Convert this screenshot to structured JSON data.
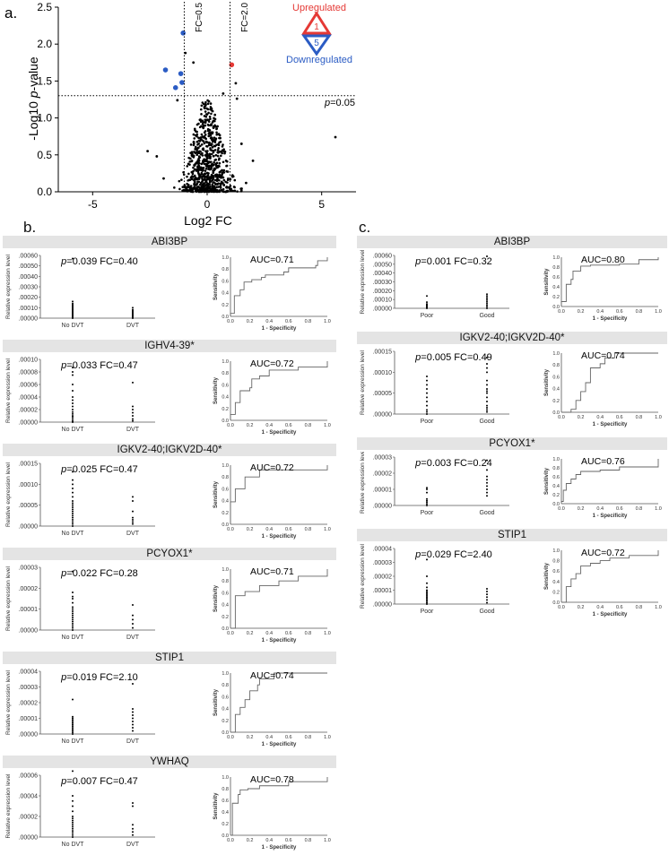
{
  "panel_labels": {
    "a": "a.",
    "b": "b.",
    "c": "c."
  },
  "volcano": {
    "type": "scatter",
    "xlabel": "Log2 FC",
    "ylabel_prefix": "-Log10 ",
    "ylabel_italic": "p",
    "ylabel_suffix": "-value",
    "xlim": [
      -6.5,
      6.5
    ],
    "ylim": [
      0,
      2.5
    ],
    "x_ticks": [
      -5,
      0,
      5
    ],
    "y_ticks": [
      "0.0",
      "0.5",
      "1.0",
      "1.5",
      "2.0",
      "2.5"
    ],
    "thresholds": {
      "fc_low_x": -1.0,
      "fc_low_label": "FC=0.5",
      "fc_high_x": 1.0,
      "fc_high_label": "FC=2.0",
      "p_y": 1.301,
      "p_label_italic": "p",
      "p_label_rest": "=0.05"
    },
    "legend": {
      "up_label": "Upregulated",
      "up_count": "1",
      "up_color": "#e53935",
      "down_label": "Downregulated",
      "down_count": "5",
      "down_color": "#2b5cc4"
    },
    "highlighted": [
      {
        "x": -1.05,
        "y": 2.15,
        "color": "#2b5cc4"
      },
      {
        "x": -1.82,
        "y": 1.65,
        "color": "#2b5cc4"
      },
      {
        "x": -1.15,
        "y": 1.6,
        "color": "#2b5cc4"
      },
      {
        "x": -1.1,
        "y": 1.48,
        "color": "#2b5cc4"
      },
      {
        "x": -1.38,
        "y": 1.41,
        "color": "#2b5cc4"
      },
      {
        "x": 1.07,
        "y": 1.72,
        "color": "#e53935"
      }
    ],
    "outliers": [
      {
        "x": 5.6,
        "y": 0.74
      },
      {
        "x": -2.6,
        "y": 0.55
      },
      {
        "x": -2.2,
        "y": 0.48
      },
      {
        "x": -1.9,
        "y": 0.18
      },
      {
        "x": 2.0,
        "y": 0.42
      },
      {
        "x": 1.7,
        "y": 0.12
      },
      {
        "x": 1.5,
        "y": 0.65
      },
      {
        "x": -1.3,
        "y": 1.24
      },
      {
        "x": 1.3,
        "y": 1.26
      },
      {
        "x": -0.95,
        "y": 1.88
      },
      {
        "x": -0.6,
        "y": 1.75
      },
      {
        "x": 1.25,
        "y": 1.47
      },
      {
        "x": 0.7,
        "y": 1.33
      }
    ]
  },
  "roc_axis": {
    "ylabel": "Sensitivity",
    "xlabel": "1 - Specificity",
    "y_ticks": [
      "0.0",
      "0.2",
      "0.4",
      "0.6",
      "0.8",
      "1.0"
    ],
    "x_ticks": [
      "0.0",
      "0.2",
      "0.4",
      "0.6",
      "0.8",
      "1.0"
    ]
  },
  "scatter_ylabel": "Relative expression level",
  "panels_b": [
    {
      "gene": "ABI3BP",
      "stats": "=0.039 FC=0.40",
      "auc": "AUC=0.71",
      "y_ticks": [
        ".00000",
        ".00010",
        ".00020",
        ".00030",
        ".00040",
        ".00050",
        ".00060"
      ],
      "groups": [
        "No DVT",
        "DVT"
      ],
      "points": [
        [
          0.0,
          1e-05,
          2e-05,
          3e-05,
          4e-05,
          5e-05,
          6e-05,
          7e-05,
          8e-05,
          9e-05,
          0.0001,
          0.00011,
          0.00012,
          0.00013,
          0.00014,
          0.00016,
          0.00057
        ],
        [
          0.0,
          1e-05,
          2e-05,
          3e-05,
          4e-05,
          5e-05,
          6e-05,
          7e-05,
          8e-05,
          0.0001
        ]
      ],
      "roc": [
        [
          0,
          0
        ],
        [
          0,
          0.05
        ],
        [
          0.04,
          0.2
        ],
        [
          0.04,
          0.35
        ],
        [
          0.1,
          0.45
        ],
        [
          0.14,
          0.58
        ],
        [
          0.22,
          0.62
        ],
        [
          0.32,
          0.66
        ],
        [
          0.36,
          0.7
        ],
        [
          0.55,
          0.75
        ],
        [
          0.6,
          0.82
        ],
        [
          0.88,
          0.86
        ],
        [
          0.9,
          0.94
        ],
        [
          1,
          1
        ]
      ]
    },
    {
      "gene": "IGHV4-39*",
      "stats": "=0.033 FC=0.47",
      "auc": "AUC=0.72",
      "y_ticks": [
        ".00000",
        ".00002",
        ".00004",
        ".00006",
        ".00008",
        ".00010"
      ],
      "groups": [
        "No DVT",
        "DVT"
      ],
      "points": [
        [
          0.0,
          2e-06,
          5e-06,
          8e-06,
          1e-05,
          1.3e-05,
          1.6e-05,
          2e-05,
          2.5e-05,
          3e-05,
          3.5e-05,
          4e-05,
          5e-05,
          6e-05,
          7.5e-05,
          8e-05,
          8.7e-05
        ],
        [
          2e-06,
          5e-06,
          1e-05,
          1.5e-05,
          2e-05,
          2.5e-05,
          6.3e-05
        ]
      ],
      "roc": [
        [
          0,
          0
        ],
        [
          0,
          0.1
        ],
        [
          0.05,
          0.2
        ],
        [
          0.05,
          0.3
        ],
        [
          0.1,
          0.35
        ],
        [
          0.1,
          0.5
        ],
        [
          0.2,
          0.55
        ],
        [
          0.22,
          0.7
        ],
        [
          0.3,
          0.75
        ],
        [
          0.4,
          0.75
        ],
        [
          0.4,
          0.85
        ],
        [
          0.7,
          0.9
        ],
        [
          1,
          1
        ]
      ]
    },
    {
      "gene": "IGKV2-40;IGKV2D-40*",
      "stats": "=0.025 FC=0.47",
      "auc": "AUC=0.72",
      "y_ticks": [
        ".00000",
        ".00005",
        ".00010",
        ".00015"
      ],
      "groups": [
        "No DVT",
        "DVT"
      ],
      "points": [
        [
          0.0,
          5e-06,
          1e-05,
          1.5e-05,
          2e-05,
          2.5e-05,
          3e-05,
          3.5e-05,
          4e-05,
          4.5e-05,
          5e-05,
          5.5e-05,
          6e-05,
          7e-05,
          8e-05,
          9e-05,
          0.0001,
          0.00011,
          0.00013
        ],
        [
          5e-06,
          1e-05,
          1.5e-05,
          2e-05,
          3.5e-05,
          6e-05,
          7e-05
        ]
      ],
      "roc": [
        [
          0,
          0
        ],
        [
          0,
          0.38
        ],
        [
          0.05,
          0.38
        ],
        [
          0.05,
          0.6
        ],
        [
          0.1,
          0.6
        ],
        [
          0.15,
          0.8
        ],
        [
          0.3,
          0.82
        ],
        [
          0.3,
          0.92
        ],
        [
          0.5,
          0.92
        ],
        [
          1,
          1
        ]
      ]
    },
    {
      "gene": "PCYOX1*",
      "stats": "=0.022 FC=0.28",
      "auc": "AUC=0.71",
      "y_ticks": [
        ".00000",
        ".00001",
        ".00002",
        ".00003"
      ],
      "groups": [
        "No DVT",
        "DVT"
      ],
      "points": [
        [
          0.0,
          1e-06,
          2e-06,
          3e-06,
          4e-06,
          5e-06,
          6e-06,
          7e-06,
          8e-06,
          9e-06,
          1e-05,
          1.1e-05,
          1.3e-05,
          1.5e-05,
          1.6e-05,
          1.8e-05,
          2.8e-05
        ],
        [
          1e-06,
          3e-06,
          5e-06,
          7e-06,
          1.2e-05
        ]
      ],
      "roc": [
        [
          0,
          0
        ],
        [
          0.05,
          0.35
        ],
        [
          0.05,
          0.55
        ],
        [
          0.15,
          0.62
        ],
        [
          0.3,
          0.72
        ],
        [
          0.5,
          0.8
        ],
        [
          0.7,
          0.88
        ],
        [
          1,
          1
        ]
      ]
    },
    {
      "gene": "STIP1",
      "stats": "=0.019 FC=2.10",
      "auc": "AUC=0.74",
      "y_ticks": [
        ".00000",
        ".00001",
        ".00002",
        ".00003",
        ".00004"
      ],
      "groups": [
        "No DVT",
        "DVT"
      ],
      "points": [
        [
          0.0,
          1e-06,
          2e-06,
          3e-06,
          4e-06,
          5e-06,
          6e-06,
          7e-06,
          8e-06,
          9e-06,
          1e-05,
          1.1e-05,
          2.2e-05
        ],
        [
          2e-06,
          4e-06,
          6e-06,
          8e-06,
          1e-05,
          1.2e-05,
          1.4e-05,
          1.6e-05,
          3.2e-05
        ]
      ],
      "roc": [
        [
          0,
          0
        ],
        [
          0.05,
          0.1
        ],
        [
          0.05,
          0.3
        ],
        [
          0.1,
          0.42
        ],
        [
          0.15,
          0.55
        ],
        [
          0.2,
          0.7
        ],
        [
          0.28,
          0.8
        ],
        [
          0.3,
          0.9
        ],
        [
          0.45,
          1
        ],
        [
          1,
          1
        ]
      ]
    },
    {
      "gene": "YWHAQ",
      "stats": "=0.007 FC=0.47",
      "auc": "AUC=0.78",
      "y_ticks": [
        ".00000",
        ".00002",
        ".00004",
        ".00006"
      ],
      "groups": [
        "No DVT",
        "DVT"
      ],
      "points": [
        [
          0.0,
          2e-06,
          4e-06,
          6e-06,
          8e-06,
          1e-05,
          1.2e-05,
          1.4e-05,
          1.6e-05,
          1.8e-05,
          2e-05,
          2.5e-05,
          3e-05,
          3.5e-05,
          4e-05,
          6.4e-05
        ],
        [
          2e-06,
          5e-06,
          8e-06,
          1.2e-05,
          3e-05,
          3.3e-05
        ]
      ],
      "roc": [
        [
          0,
          0
        ],
        [
          0.02,
          0.3
        ],
        [
          0.02,
          0.55
        ],
        [
          0.08,
          0.7
        ],
        [
          0.1,
          0.78
        ],
        [
          0.18,
          0.8
        ],
        [
          0.3,
          0.85
        ],
        [
          0.6,
          0.92
        ],
        [
          1,
          1
        ]
      ]
    }
  ],
  "panels_c": [
    {
      "gene": "ABI3BP",
      "stats": "=0.001 FC=0.32",
      "auc": "AUC=0.80",
      "y_ticks": [
        ".00000",
        ".00010",
        ".00020",
        ".00030",
        ".00040",
        ".00050",
        ".00060"
      ],
      "groups": [
        "Poor",
        "Good"
      ],
      "points": [
        [
          0.0,
          1e-05,
          2e-05,
          3e-05,
          4e-05,
          5e-05,
          7e-05,
          0.00014
        ],
        [
          0.0,
          2e-05,
          4e-05,
          6e-05,
          8e-05,
          0.0001,
          0.00012,
          0.00014,
          0.00016,
          0.00059
        ]
      ],
      "roc": [
        [
          0,
          0
        ],
        [
          0,
          0.1
        ],
        [
          0.05,
          0.28
        ],
        [
          0.05,
          0.45
        ],
        [
          0.1,
          0.55
        ],
        [
          0.12,
          0.72
        ],
        [
          0.2,
          0.82
        ],
        [
          0.3,
          0.84
        ],
        [
          0.6,
          0.86
        ],
        [
          0.8,
          0.95
        ],
        [
          1,
          1
        ]
      ]
    },
    {
      "gene": "IGKV2-40;IGKV2D-40*",
      "stats": "=0.005 FC=0.49",
      "auc": "AUC=0.74",
      "y_ticks": [
        ".00000",
        ".00005",
        ".00010",
        ".00015"
      ],
      "groups": [
        "Poor",
        "Good"
      ],
      "points": [
        [
          0.0,
          5e-06,
          1e-05,
          2e-05,
          3e-05,
          4e-05,
          5e-05,
          6e-05,
          7e-05,
          8e-05,
          9e-05
        ],
        [
          5e-06,
          1e-05,
          1.5e-05,
          2e-05,
          3e-05,
          4e-05,
          5e-05,
          5.5e-05,
          6e-05,
          7e-05,
          8e-05,
          0.0001,
          0.00011,
          0.00012,
          0.000135
        ]
      ],
      "roc": [
        [
          0,
          0
        ],
        [
          0.1,
          0.05
        ],
        [
          0.15,
          0.2
        ],
        [
          0.2,
          0.35
        ],
        [
          0.25,
          0.5
        ],
        [
          0.3,
          0.6
        ],
        [
          0.3,
          0.75
        ],
        [
          0.4,
          0.82
        ],
        [
          0.45,
          0.92
        ],
        [
          0.55,
          1
        ],
        [
          1,
          1
        ]
      ]
    },
    {
      "gene": "PCYOX1*",
      "stats": "=0.003 FC=0.24",
      "auc": "AUC=0.76",
      "y_ticks": [
        ".00000",
        ".00001",
        ".00002",
        ".00003"
      ],
      "groups": [
        "Poor",
        "Good"
      ],
      "points": [
        [
          0.0,
          1e-06,
          2e-06,
          3e-06,
          4e-06,
          8e-06,
          1e-05,
          1.1e-05
        ],
        [
          6e-06,
          8e-06,
          1e-05,
          1.2e-05,
          1.4e-05,
          1.6e-05,
          1.8e-05,
          2.2e-05,
          2.8e-05
        ]
      ],
      "roc": [
        [
          0,
          0
        ],
        [
          0,
          0.05
        ],
        [
          0.02,
          0.3
        ],
        [
          0.05,
          0.45
        ],
        [
          0.1,
          0.55
        ],
        [
          0.15,
          0.65
        ],
        [
          0.2,
          0.72
        ],
        [
          0.4,
          0.75
        ],
        [
          0.6,
          0.82
        ],
        [
          1,
          1
        ]
      ]
    },
    {
      "gene": "STIP1",
      "stats": "=0.029 FC=2.40",
      "auc": "AUC=0.72",
      "y_ticks": [
        ".00000",
        ".00001",
        ".00002",
        ".00003",
        ".00004"
      ],
      "groups": [
        "Poor",
        "Good"
      ],
      "points": [
        [
          0.0,
          1e-06,
          2e-06,
          3e-06,
          4e-06,
          5e-06,
          6e-06,
          7e-06,
          8e-06,
          9e-06,
          1e-05,
          1.2e-05,
          1.5e-05,
          2e-05,
          3.2e-05
        ],
        [
          1e-06,
          3e-06,
          5e-06,
          7e-06,
          9e-06,
          1.1e-05
        ]
      ],
      "roc": [
        [
          0,
          0
        ],
        [
          0.05,
          0.1
        ],
        [
          0.05,
          0.3
        ],
        [
          0.1,
          0.45
        ],
        [
          0.15,
          0.55
        ],
        [
          0.2,
          0.7
        ],
        [
          0.3,
          0.75
        ],
        [
          0.4,
          0.8
        ],
        [
          0.5,
          0.85
        ],
        [
          0.7,
          0.9
        ],
        [
          1,
          1
        ]
      ]
    }
  ]
}
